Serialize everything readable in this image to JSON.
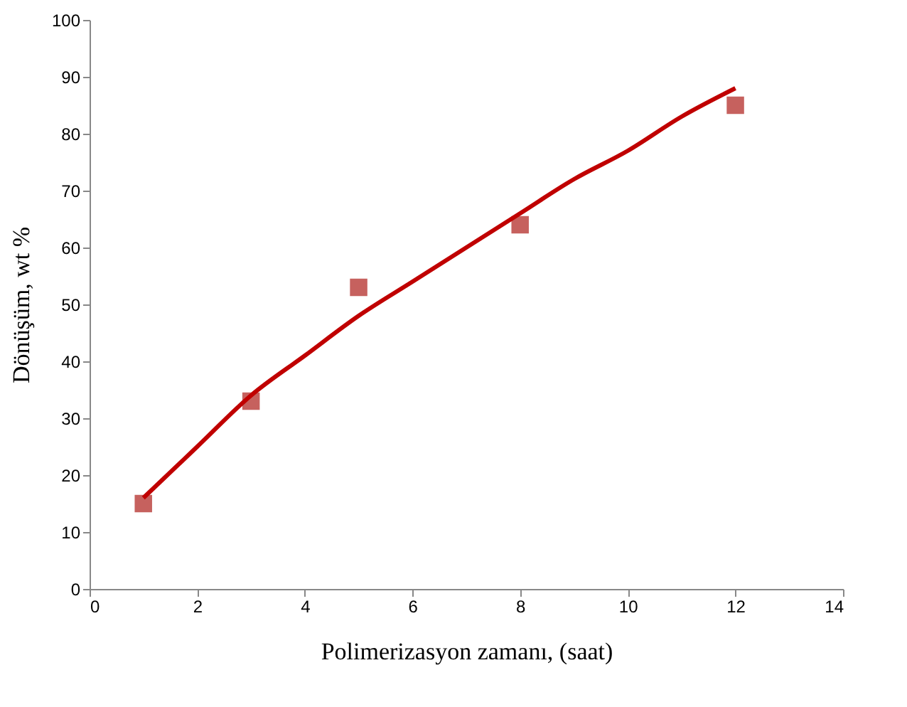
{
  "chart_data": {
    "type": "scatter",
    "xlabel": "Polimerizasyon zamanı, (saat)",
    "ylabel": "Dönüşüm, wt %",
    "xlim": [
      0,
      14
    ],
    "xticks": [
      0,
      2,
      4,
      6,
      8,
      10,
      12,
      14
    ],
    "ylim": [
      0,
      100
    ],
    "yticks": [
      0,
      10,
      20,
      30,
      40,
      50,
      60,
      70,
      80,
      90,
      100
    ],
    "grid": false,
    "series": [
      {
        "marker": "square",
        "color": "#c0504d",
        "x": [
          1,
          3,
          5,
          8,
          12
        ],
        "values": [
          15,
          33,
          53,
          64,
          85
        ]
      },
      {
        "type": "line",
        "marker": "none",
        "line_style": "solid",
        "color": "#c00000",
        "x": [
          1,
          2,
          3,
          4,
          5,
          6,
          7,
          8,
          9,
          10,
          11,
          12
        ],
        "values": [
          16,
          25,
          34,
          41,
          48,
          54,
          60,
          66,
          72,
          77,
          83,
          88
        ]
      }
    ]
  }
}
